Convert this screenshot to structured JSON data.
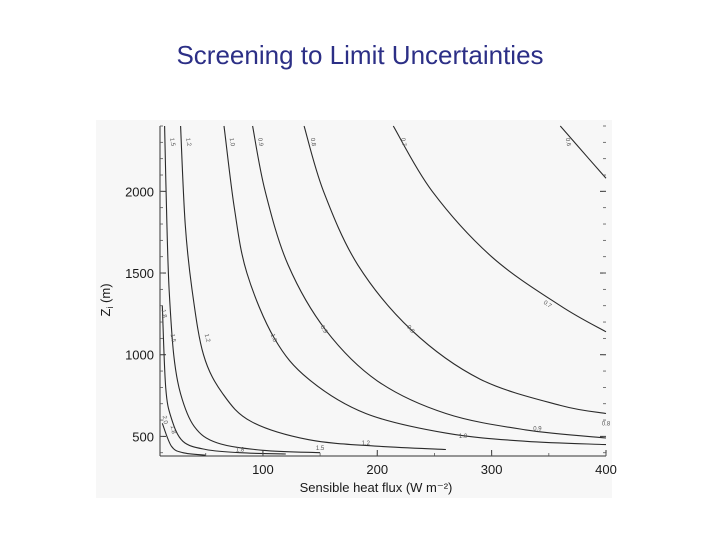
{
  "slide": {
    "title": "Screening to Limit Uncertainties"
  },
  "chart_data": {
    "type": "line",
    "subtype": "contour",
    "xlabel": "Sensible heat flux (W m⁻²)",
    "ylabel": "Z",
    "ylabel_sub": "i",
    "ylabel_unit": " (m)",
    "xlim": [
      10,
      400
    ],
    "ylim": [
      380,
      2400
    ],
    "x_ticks": [
      100,
      200,
      300,
      400
    ],
    "y_ticks": [
      500,
      1000,
      1500,
      2000
    ],
    "grid": false,
    "contour_levels": [
      "1.5",
      "1.2",
      "1.0",
      "0.9",
      "0.8",
      "0.7",
      "0.6"
    ],
    "low_labels": [
      "1.8",
      "1.5",
      "1.2",
      "1.0",
      "0.9",
      "0.8"
    ],
    "extra_labels": [
      "2.0",
      "1.8"
    ],
    "series": [
      {
        "name": "2.0",
        "points": [
          [
            12,
            580
          ],
          [
            20,
            440
          ],
          [
            30,
            400
          ],
          [
            50,
            385
          ]
        ]
      },
      {
        "name": "1.8",
        "points": [
          [
            12,
            1300
          ],
          [
            15,
            800
          ],
          [
            20,
            610
          ],
          [
            30,
            470
          ],
          [
            50,
            420
          ],
          [
            80,
            400
          ],
          [
            120,
            392
          ]
        ]
      },
      {
        "name": "1.5",
        "points": [
          [
            14,
            2400
          ],
          [
            16,
            1800
          ],
          [
            18,
            1400
          ],
          [
            22,
            1000
          ],
          [
            28,
            760
          ],
          [
            40,
            560
          ],
          [
            60,
            460
          ],
          [
            100,
            415
          ],
          [
            150,
            400
          ]
        ]
      },
      {
        "name": "1.2",
        "points": [
          [
            28,
            2400
          ],
          [
            32,
            1800
          ],
          [
            38,
            1400
          ],
          [
            48,
            1000
          ],
          [
            65,
            760
          ],
          [
            90,
            590
          ],
          [
            140,
            480
          ],
          [
            200,
            440
          ],
          [
            260,
            420
          ]
        ]
      },
      {
        "name": "1.0",
        "points": [
          [
            66,
            2400
          ],
          [
            75,
            1900
          ],
          [
            86,
            1500
          ],
          [
            110,
            1100
          ],
          [
            140,
            850
          ],
          [
            190,
            640
          ],
          [
            260,
            520
          ],
          [
            330,
            470
          ],
          [
            400,
            450
          ]
        ]
      },
      {
        "name": "0.9",
        "points": [
          [
            91,
            2400
          ],
          [
            102,
            2000
          ],
          [
            122,
            1550
          ],
          [
            155,
            1150
          ],
          [
            200,
            840
          ],
          [
            260,
            640
          ],
          [
            330,
            540
          ],
          [
            400,
            490
          ]
        ]
      },
      {
        "name": "0.8",
        "points": [
          [
            136,
            2400
          ],
          [
            153,
            2000
          ],
          [
            183,
            1550
          ],
          [
            230,
            1150
          ],
          [
            290,
            850
          ],
          [
            360,
            690
          ],
          [
            400,
            640
          ]
        ]
      },
      {
        "name": "0.7",
        "points": [
          [
            214,
            2400
          ],
          [
            248,
            2000
          ],
          [
            300,
            1600
          ],
          [
            360,
            1300
          ],
          [
            400,
            1140
          ]
        ]
      },
      {
        "name": "0.6",
        "points": [
          [
            360,
            2400
          ],
          [
            385,
            2200
          ],
          [
            400,
            2080
          ]
        ]
      }
    ]
  }
}
